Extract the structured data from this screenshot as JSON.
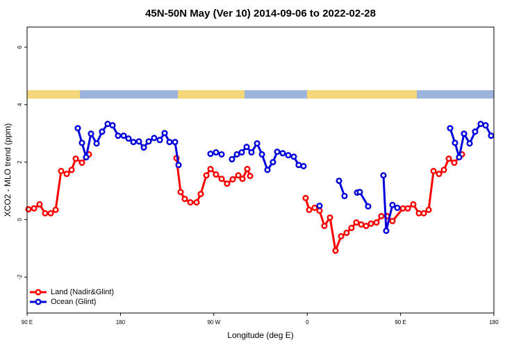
{
  "chart_data": {
    "type": "line",
    "title": "45N-50N May (Ver 10)   2014-09-06 to 2022-02-28",
    "x_label": "Longitude (deg E)",
    "y_label": "XCO2 - MLO trend (ppm)",
    "xlim": [
      90,
      540
    ],
    "xticks": [
      {
        "value": 90,
        "label": "90 E"
      },
      180,
      {
        "value": 270,
        "label": "90 W"
      },
      {
        "value": 360,
        "label": "0"
      },
      {
        "value": 450,
        "label": "90 E"
      },
      {
        "value": 540,
        "label": "180"
      }
    ],
    "ylim": [
      -3.25,
      6.7
    ],
    "yticks": [
      -2,
      0,
      2,
      4,
      6
    ],
    "legend": "bottom-left",
    "series": [
      {
        "name": "Land (Nadir&Glint)",
        "color": "#ff0000",
        "x": [
          91.3,
          96.7,
          102,
          107.4,
          112.8,
          117.5,
          122.8,
          128.2,
          132.9,
          136.9,
          142.9,
          149.6,
          null,
          234,
          238,
          242,
          247.4,
          253.4,
          257.4,
          262.8,
          266.8,
          272.1,
          277.5,
          282.8,
          288.2,
          293.6,
          297.6,
          302.3,
          305,
          null,
          358.5,
          361.9,
          367.2,
          371.9,
          376.6,
          382,
          387.3,
          392.7,
          398,
          402.7,
          407.4,
          412.1,
          416.8,
          421.5,
          426.8,
          431.5,
          436.9,
          442.2,
          452.3,
          457,
          462.3,
          467.7,
          472.4,
          477.1,
          481.8,
          487.1,
          491.8,
          496.5,
          501.8,
          509.2
        ],
        "values": [
          0.36,
          0.39,
          0.53,
          0.22,
          0.22,
          0.34,
          1.69,
          1.59,
          1.73,
          2.12,
          1.98,
          2.27,
          null,
          2.14,
          0.96,
          0.72,
          0.6,
          0.6,
          0.89,
          1.54,
          1.76,
          1.57,
          1.42,
          1.25,
          1.4,
          1.54,
          1.42,
          1.76,
          1.52,
          null,
          0.75,
          0.34,
          0.41,
          0.31,
          -0.22,
          0.07,
          -1.08,
          -0.58,
          -0.46,
          -0.29,
          -0.1,
          -0.17,
          -0.22,
          -0.14,
          -0.1,
          0.12,
          0.12,
          -0.05,
          0.39,
          0.39,
          0.53,
          0.22,
          0.22,
          0.34,
          1.69,
          1.59,
          1.73,
          2.12,
          1.98,
          2.27
        ]
      },
      {
        "name": "Ocean (Glint)",
        "color": "#0000dd",
        "x": [
          138.9,
          142.9,
          146.9,
          151.6,
          157,
          162.3,
          167.7,
          172.4,
          177.7,
          183.1,
          187.8,
          192.5,
          197.8,
          202.5,
          207.2,
          212.5,
          217.9,
          222.6,
          227.3,
          232.6,
          236,
          null,
          266.8,
          272.1,
          277.5,
          null,
          287.5,
          292.2,
          296.9,
          301.6,
          306.3,
          311.7,
          316.4,
          321.7,
          327,
          331.1,
          336.4,
          341.8,
          347.1,
          351.8,
          356.5,
          null,
          371.9,
          null,
          390.7,
          396,
          null,
          408.1,
          410.7,
          418.8,
          null,
          433.5,
          436.2,
          442.2,
          446.9,
          null,
          497.8,
          502.5,
          506.5,
          511.2,
          516.6,
          521.9,
          527.3,
          532,
          537.3
        ],
        "values": [
          3.18,
          2.67,
          2.17,
          2.99,
          2.65,
          3.06,
          3.33,
          3.28,
          2.92,
          2.92,
          2.82,
          2.7,
          2.72,
          2.51,
          2.72,
          2.84,
          2.77,
          3.01,
          2.7,
          2.7,
          1.9,
          null,
          2.29,
          2.34,
          2.27,
          null,
          2.1,
          2.27,
          2.34,
          2.53,
          2.34,
          2.65,
          2.27,
          1.73,
          2.0,
          2.36,
          2.31,
          2.24,
          2.19,
          1.9,
          1.86,
          null,
          0.48,
          null,
          1.35,
          0.82,
          null,
          0.94,
          0.96,
          0.46,
          null,
          1.54,
          -0.39,
          0.51,
          0.41,
          null,
          3.18,
          2.67,
          2.17,
          2.99,
          2.65,
          3.06,
          3.33,
          3.28,
          2.92
        ]
      }
    ]
  }
}
